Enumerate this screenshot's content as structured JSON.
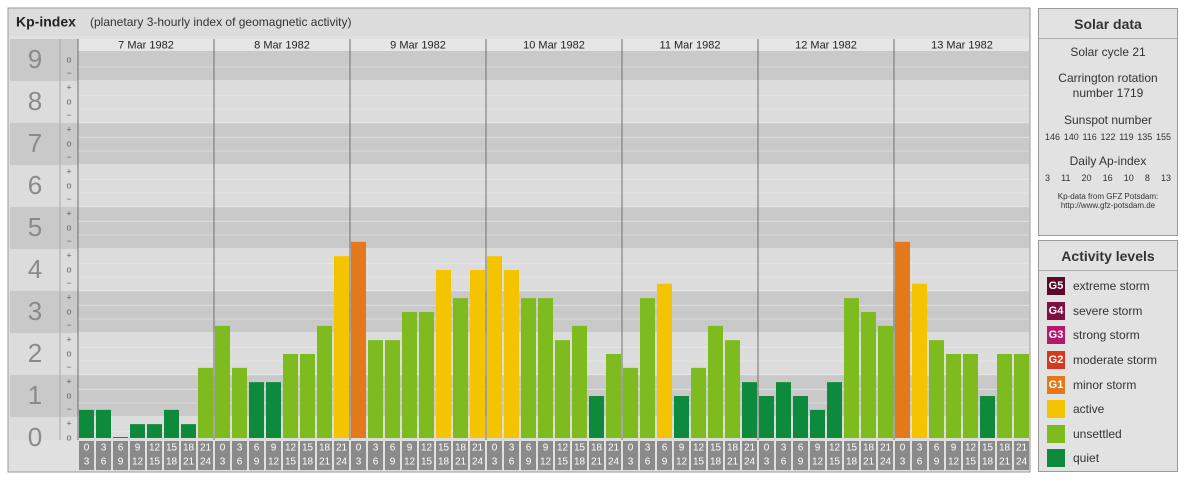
{
  "chart_data": {
    "type": "bar",
    "title": "Kp-index",
    "subtitle": "(planetary 3-hourly index of geomagnetic activity)",
    "ylim": [
      0,
      9.5
    ],
    "yticks": [
      0,
      1,
      2,
      3,
      4,
      5,
      6,
      7,
      8,
      9
    ],
    "minor_ticks": [
      {
        "value": 0,
        "label": "o"
      },
      {
        "value": 0.33,
        "label": "+"
      },
      {
        "value": 0.67,
        "label": "−"
      },
      {
        "value": 1,
        "label": "o"
      },
      {
        "value": 1.33,
        "label": "+"
      },
      {
        "value": 1.67,
        "label": "−"
      },
      {
        "value": 2,
        "label": "o"
      },
      {
        "value": 2.33,
        "label": "+"
      },
      {
        "value": 2.67,
        "label": "−"
      },
      {
        "value": 3,
        "label": "o"
      },
      {
        "value": 3.33,
        "label": "+"
      },
      {
        "value": 3.67,
        "label": "−"
      },
      {
        "value": 4,
        "label": "o"
      },
      {
        "value": 4.33,
        "label": "+"
      },
      {
        "value": 4.67,
        "label": "−"
      },
      {
        "value": 5,
        "label": "o"
      },
      {
        "value": 5.33,
        "label": "+"
      },
      {
        "value": 5.67,
        "label": "−"
      },
      {
        "value": 6,
        "label": "o"
      },
      {
        "value": 6.33,
        "label": "+"
      },
      {
        "value": 6.67,
        "label": "−"
      },
      {
        "value": 7,
        "label": "o"
      },
      {
        "value": 7.33,
        "label": "+"
      },
      {
        "value": 7.67,
        "label": "−"
      },
      {
        "value": 8,
        "label": "o"
      },
      {
        "value": 8.33,
        "label": "+"
      },
      {
        "value": 8.67,
        "label": "−"
      },
      {
        "value": 9,
        "label": "o"
      }
    ],
    "hours_start": [
      0,
      3,
      6,
      9,
      12,
      15,
      18,
      21
    ],
    "hours_end": [
      3,
      6,
      9,
      12,
      15,
      18,
      21,
      24
    ],
    "days": [
      {
        "date": "7 Mar 1982",
        "values": [
          0.67,
          0.67,
          0,
          0.33,
          0.33,
          0.67,
          0.33,
          1.67
        ],
        "colors": [
          "#0d8a3c",
          "#0d8a3c",
          "#0d8a3c",
          "#0d8a3c",
          "#0d8a3c",
          "#0d8a3c",
          "#0d8a3c",
          "#7dbb1e"
        ]
      },
      {
        "date": "8 Mar 1982",
        "values": [
          2.67,
          1.67,
          1.33,
          1.33,
          2,
          2,
          2.67,
          4.33
        ],
        "colors": [
          "#7dbb1e",
          "#7dbb1e",
          "#0d8a3c",
          "#0d8a3c",
          "#7dbb1e",
          "#7dbb1e",
          "#7dbb1e",
          "#f5c400"
        ]
      },
      {
        "date": "9 Mar 1982",
        "values": [
          4.67,
          2.33,
          2.33,
          3,
          3,
          4,
          3.33,
          4
        ],
        "colors": [
          "#e3791b",
          "#7dbb1e",
          "#7dbb1e",
          "#7dbb1e",
          "#7dbb1e",
          "#f5c400",
          "#7dbb1e",
          "#f5c400"
        ]
      },
      {
        "date": "10 Mar 1982",
        "values": [
          4.33,
          4,
          3.33,
          3.33,
          2.33,
          2.67,
          1,
          2
        ],
        "colors": [
          "#f5c400",
          "#f5c400",
          "#7dbb1e",
          "#7dbb1e",
          "#7dbb1e",
          "#7dbb1e",
          "#0d8a3c",
          "#7dbb1e"
        ]
      },
      {
        "date": "11 Mar 1982",
        "values": [
          1.67,
          3.33,
          3.67,
          1,
          1.67,
          2.67,
          2.33,
          1.33
        ],
        "colors": [
          "#7dbb1e",
          "#7dbb1e",
          "#f5c400",
          "#0d8a3c",
          "#7dbb1e",
          "#7dbb1e",
          "#7dbb1e",
          "#0d8a3c"
        ]
      },
      {
        "date": "12 Mar 1982",
        "values": [
          1,
          1.33,
          1,
          0.67,
          1.33,
          3.33,
          3,
          2.67
        ],
        "colors": [
          "#0d8a3c",
          "#0d8a3c",
          "#0d8a3c",
          "#0d8a3c",
          "#0d8a3c",
          "#7dbb1e",
          "#7dbb1e",
          "#7dbb1e"
        ]
      },
      {
        "date": "13 Mar 1982",
        "values": [
          4.67,
          3.67,
          2.33,
          2,
          2,
          1,
          2,
          2
        ],
        "colors": [
          "#e3791b",
          "#f5c400",
          "#7dbb1e",
          "#7dbb1e",
          "#7dbb1e",
          "#0d8a3c",
          "#7dbb1e",
          "#7dbb1e"
        ]
      }
    ]
  },
  "solar": {
    "title": "Solar data",
    "cycle": "Solar cycle 21",
    "carrington": "Carrington rotation number 1719",
    "sunspot_label": "Sunspot number",
    "sunspots": [
      "146",
      "140",
      "116",
      "122",
      "119",
      "135",
      "155"
    ],
    "ap_label": "Daily Ap-index",
    "ap": [
      "3",
      "11",
      "20",
      "16",
      "10",
      "8",
      "13"
    ],
    "source": "Kp-data from GFZ Potsdam:",
    "url": "http://www.gfz-potsdam.de"
  },
  "legend": {
    "title": "Activity levels",
    "levels": [
      {
        "code": "G5",
        "name": "extreme storm",
        "color": "#5c0a2a"
      },
      {
        "code": "G4",
        "name": "severe storm",
        "color": "#7d0f45"
      },
      {
        "code": "G3",
        "name": "strong storm",
        "color": "#b5176e"
      },
      {
        "code": "G2",
        "name": "moderate storm",
        "color": "#d63a1e"
      },
      {
        "code": "G1",
        "name": "minor storm",
        "color": "#e3791b"
      },
      {
        "code": null,
        "name": "active",
        "color": "#f5c400"
      },
      {
        "code": null,
        "name": "unsettled",
        "color": "#7dbb1e"
      },
      {
        "code": null,
        "name": "quiet",
        "color": "#0d8a3c"
      }
    ]
  }
}
